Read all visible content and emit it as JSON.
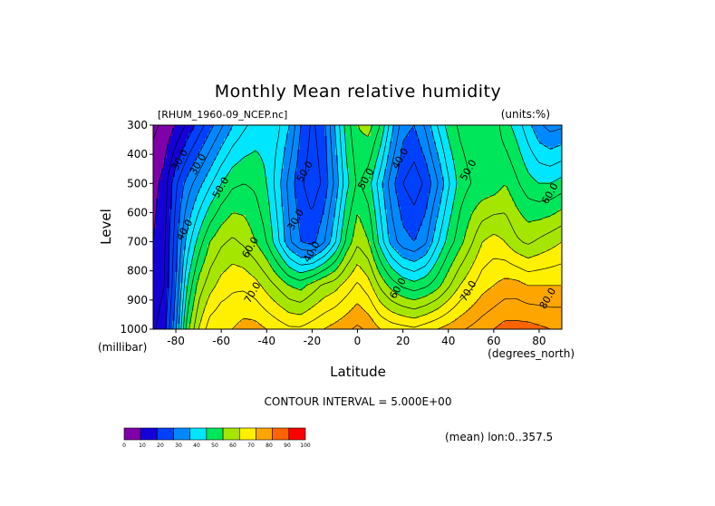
{
  "chart_data": {
    "type": "heatmap",
    "title": "Monthly Mean relative humidity",
    "source_label": "[RHUM_1960-09_NCEP.nc]",
    "units_label": "(units:%)",
    "xlabel": "Latitude",
    "x_units_label": "(degrees_north)",
    "ylabel": "Level",
    "y_units_label": "(millibar)",
    "xlim": [
      -90,
      90
    ],
    "ylim": [
      1000,
      300
    ],
    "x_ticks": [
      -80,
      -60,
      -40,
      -20,
      0,
      20,
      40,
      60,
      80
    ],
    "y_ticks": [
      300,
      400,
      500,
      600,
      700,
      800,
      900,
      1000
    ],
    "contour_interval_text": "CONTOUR INTERVAL = 5.000E+00",
    "mean_text": "(mean) lon:0..357.5",
    "contour_labels": [
      {
        "text": "30.0",
        "lat": -77,
        "level": 425
      },
      {
        "text": "30.0",
        "lat": -69,
        "level": 440
      },
      {
        "text": "50.0",
        "lat": -59,
        "level": 520
      },
      {
        "text": "40.0",
        "lat": -75,
        "level": 665
      },
      {
        "text": "60.0",
        "lat": -46,
        "level": 725
      },
      {
        "text": "70.0",
        "lat": -45,
        "level": 880
      },
      {
        "text": "30.0",
        "lat": -26,
        "level": 630
      },
      {
        "text": "40.0",
        "lat": -19,
        "level": 740
      },
      {
        "text": "50.0",
        "lat": -22,
        "level": 465
      },
      {
        "text": "50.0",
        "lat": 5,
        "level": 490
      },
      {
        "text": "40.0",
        "lat": 20,
        "level": 420
      },
      {
        "text": "60.0",
        "lat": 19,
        "level": 865
      },
      {
        "text": "50.0",
        "lat": 50,
        "level": 460
      },
      {
        "text": "70.0",
        "lat": 50,
        "level": 875
      },
      {
        "text": "60.0",
        "lat": 86,
        "level": 540
      },
      {
        "text": "80.0",
        "lat": 85,
        "level": 900
      }
    ],
    "colorbar": {
      "tick_labels": [
        "0",
        "10",
        "20",
        "30",
        "40",
        "50",
        "60",
        "70",
        "80",
        "90",
        "100"
      ],
      "colors": [
        "#7f00a8",
        "#1400d7",
        "#0040ff",
        "#0089ff",
        "#00e6ff",
        "#00e65a",
        "#a5e600",
        "#fff000",
        "#ffa500",
        "#ff6400",
        "#ff0000"
      ]
    },
    "profiles": {
      "lat": [
        -90,
        -85,
        -80,
        -75,
        -70,
        -65,
        -60,
        -55,
        -50,
        -45,
        -40,
        -35,
        -30,
        -25,
        -20,
        -15,
        -10,
        -5,
        0,
        5,
        10,
        15,
        20,
        25,
        30,
        35,
        40,
        45,
        50,
        55,
        60,
        65,
        70,
        75,
        80,
        85,
        90
      ],
      "p300": [
        4,
        6,
        10,
        16,
        22,
        28,
        34,
        40,
        44,
        47,
        48,
        46,
        40,
        30,
        24,
        28,
        40,
        52,
        60,
        62,
        55,
        42,
        32,
        30,
        36,
        45,
        52,
        56,
        58,
        60,
        58,
        52,
        48,
        42,
        36,
        33,
        34
      ],
      "p500": [
        8,
        12,
        24,
        32,
        38,
        44,
        50,
        54,
        55,
        54,
        50,
        42,
        33,
        26,
        22,
        26,
        36,
        48,
        56,
        52,
        42,
        32,
        25,
        22,
        26,
        34,
        44,
        52,
        55,
        56,
        57,
        60,
        56,
        52,
        50,
        50,
        52
      ],
      "p700": [
        10,
        14,
        28,
        42,
        52,
        60,
        64,
        66,
        64,
        60,
        55,
        46,
        36,
        30,
        28,
        34,
        44,
        56,
        64,
        60,
        48,
        38,
        32,
        30,
        34,
        44,
        52,
        58,
        64,
        70,
        72,
        70,
        66,
        64,
        66,
        68,
        70
      ],
      "p850": [
        12,
        15,
        30,
        50,
        62,
        68,
        72,
        74,
        74,
        72,
        68,
        64,
        60,
        58,
        62,
        66,
        68,
        72,
        76,
        72,
        64,
        58,
        54,
        52,
        54,
        58,
        64,
        70,
        74,
        78,
        80,
        82,
        82,
        80,
        80,
        80,
        80
      ],
      "p1000": [
        14,
        18,
        34,
        58,
        70,
        78,
        80,
        80,
        82,
        82,
        80,
        78,
        76,
        76,
        78,
        80,
        82,
        84,
        86,
        84,
        80,
        78,
        77,
        76,
        78,
        80,
        82,
        84,
        86,
        88,
        90,
        92,
        92,
        92,
        91,
        90,
        90
      ]
    }
  }
}
